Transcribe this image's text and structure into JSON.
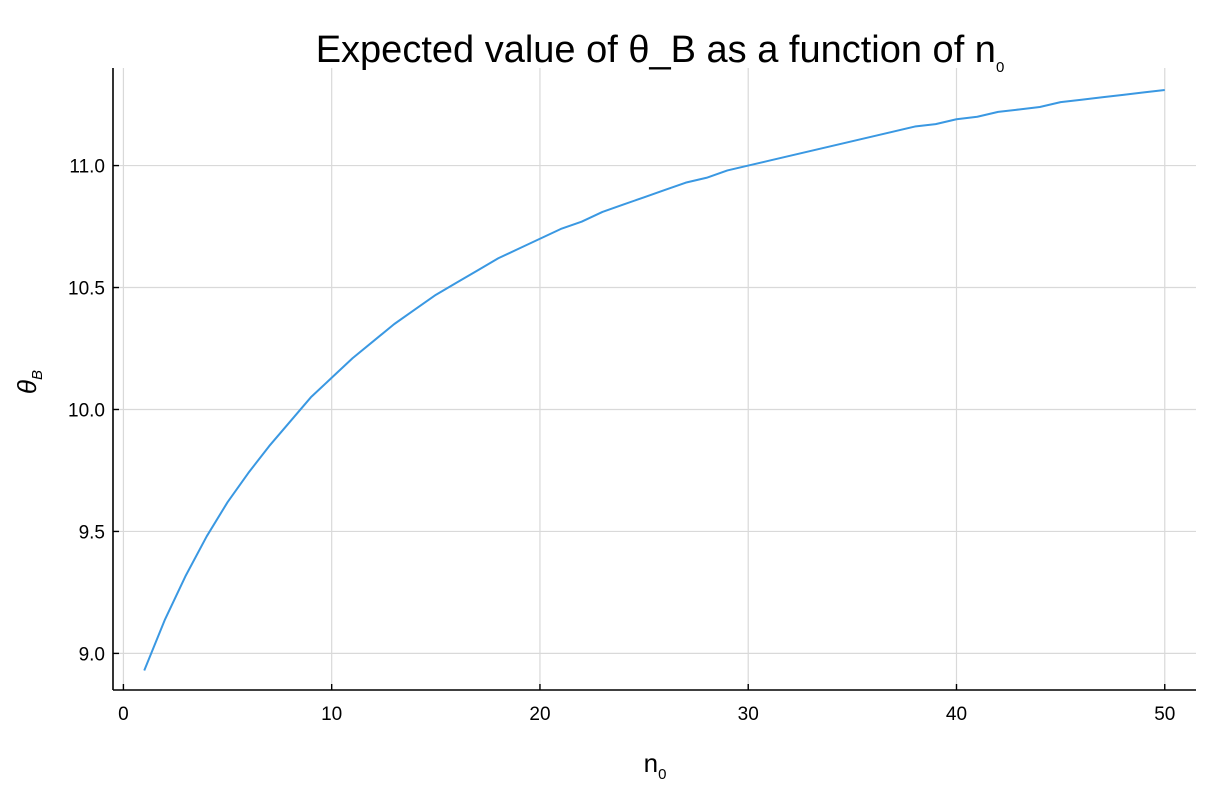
{
  "chart_data": {
    "type": "line",
    "title": "Expected value of θ_B as a function of n",
    "title_subscript": "0",
    "xlabel": "n",
    "xlabel_subscript": "0",
    "ylabel": "θ",
    "ylabel_subscript": "B",
    "xlim": [
      -0.5,
      51.5
    ],
    "ylim": [
      8.85,
      11.4
    ],
    "xticks": [
      0,
      10,
      20,
      30,
      40,
      50
    ],
    "xtick_labels": [
      "0",
      "10",
      "20",
      "30",
      "40",
      "50"
    ],
    "yticks": [
      9.0,
      9.5,
      10.0,
      10.5,
      11.0
    ],
    "ytick_labels": [
      "9.0",
      "9.5",
      "10.0",
      "10.5",
      "11.0"
    ],
    "grid": true,
    "legend": "none",
    "series": [
      {
        "color": "#3a98e2",
        "x": [
          1,
          2,
          3,
          4,
          5,
          6,
          7,
          8,
          9,
          10,
          11,
          12,
          13,
          14,
          15,
          16,
          17,
          18,
          19,
          20,
          21,
          22,
          23,
          24,
          25,
          26,
          27,
          28,
          29,
          30,
          31,
          32,
          33,
          34,
          35,
          36,
          37,
          38,
          39,
          40,
          41,
          42,
          43,
          44,
          45,
          46,
          47,
          48,
          49,
          50
        ],
        "y": [
          8.93,
          9.14,
          9.32,
          9.48,
          9.62,
          9.74,
          9.85,
          9.95,
          10.05,
          10.13,
          10.21,
          10.28,
          10.35,
          10.41,
          10.47,
          10.52,
          10.57,
          10.62,
          10.66,
          10.7,
          10.74,
          10.77,
          10.81,
          10.84,
          10.87,
          10.9,
          10.93,
          10.95,
          10.98,
          11.0,
          11.02,
          11.04,
          11.06,
          11.08,
          11.1,
          11.12,
          11.14,
          11.16,
          11.17,
          11.19,
          11.2,
          11.22,
          11.23,
          11.24,
          11.26,
          11.27,
          11.28,
          11.29,
          11.3,
          11.31
        ]
      }
    ]
  }
}
